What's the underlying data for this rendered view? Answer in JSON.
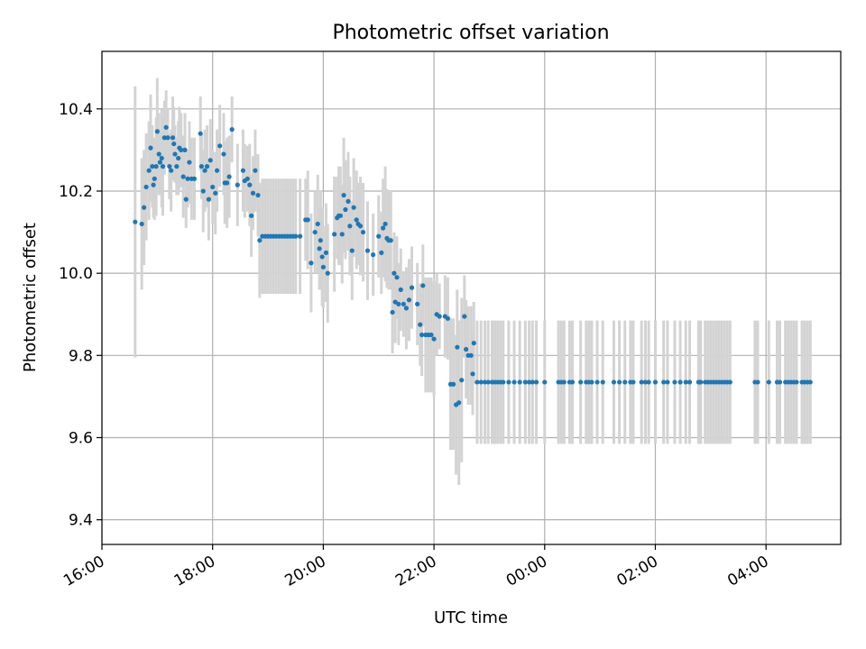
{
  "chart_data": {
    "type": "scatter",
    "title": "Photometric offset variation",
    "xlabel": "UTC time",
    "ylabel": "Photometric offset",
    "grid": true,
    "xlim": [
      16.0,
      29.35
    ],
    "ylim": [
      9.34,
      10.54
    ],
    "x_ticks": [
      {
        "value": 16,
        "label": "16:00"
      },
      {
        "value": 18,
        "label": "18:00"
      },
      {
        "value": 20,
        "label": "20:00"
      },
      {
        "value": 22,
        "label": "22:00"
      },
      {
        "value": 24,
        "label": "00:00"
      },
      {
        "value": 26,
        "label": "02:00"
      },
      {
        "value": 28,
        "label": "04:00"
      }
    ],
    "y_ticks": [
      {
        "value": 9.4,
        "label": "9.4"
      },
      {
        "value": 9.6,
        "label": "9.6"
      },
      {
        "value": 9.8,
        "label": "9.8"
      },
      {
        "value": 10.0,
        "label": "10.0"
      },
      {
        "value": 10.2,
        "label": "10.2"
      },
      {
        "value": 10.4,
        "label": "10.4"
      }
    ],
    "colors": {
      "points": "#1f77b4",
      "errorbars": "#d3d3d3"
    },
    "points": [
      [
        16.6,
        10.125,
        0.33
      ],
      [
        16.72,
        10.12,
        0.16
      ],
      [
        16.76,
        10.16,
        0.14
      ],
      [
        16.8,
        10.21,
        0.13
      ],
      [
        16.85,
        10.25,
        0.12
      ],
      [
        16.88,
        10.305,
        0.13
      ],
      [
        16.91,
        10.26,
        0.1
      ],
      [
        16.93,
        10.215,
        0.08
      ],
      [
        16.95,
        10.23,
        0.1
      ],
      [
        16.98,
        10.26,
        0.12
      ],
      [
        17.0,
        10.345,
        0.13
      ],
      [
        17.03,
        10.29,
        0.1
      ],
      [
        17.05,
        10.27,
        0.08
      ],
      [
        17.08,
        10.28,
        0.12
      ],
      [
        17.1,
        10.26,
        0.12
      ],
      [
        17.13,
        10.33,
        0.09
      ],
      [
        17.16,
        10.355,
        0.09
      ],
      [
        17.19,
        10.33,
        0.07
      ],
      [
        17.22,
        10.26,
        0.08
      ],
      [
        17.25,
        10.25,
        0.1
      ],
      [
        17.28,
        10.33,
        0.1
      ],
      [
        17.3,
        10.315,
        0.09
      ],
      [
        17.32,
        10.29,
        0.07
      ],
      [
        17.35,
        10.26,
        0.07
      ],
      [
        17.38,
        10.28,
        0.09
      ],
      [
        17.4,
        10.305,
        0.1
      ],
      [
        17.43,
        10.3,
        0.09
      ],
      [
        17.47,
        10.235,
        0.1
      ],
      [
        17.5,
        10.3,
        0.09
      ],
      [
        17.52,
        10.18,
        0.07
      ],
      [
        17.55,
        10.23,
        0.07
      ],
      [
        17.58,
        10.27,
        0.1
      ],
      [
        17.62,
        10.23,
        0.1
      ],
      [
        17.67,
        10.23,
        0.1
      ],
      [
        17.78,
        10.34,
        0.09
      ],
      [
        17.8,
        10.26,
        0.08
      ],
      [
        17.83,
        10.2,
        0.1
      ],
      [
        17.86,
        10.25,
        0.1
      ],
      [
        17.9,
        10.26,
        0.1
      ],
      [
        17.93,
        10.18,
        0.1
      ],
      [
        17.96,
        10.275,
        0.1
      ],
      [
        18.0,
        10.21,
        0.09
      ],
      [
        18.05,
        10.195,
        0.1
      ],
      [
        18.08,
        10.25,
        0.1
      ],
      [
        18.13,
        10.31,
        0.1
      ],
      [
        18.2,
        10.29,
        0.1
      ],
      [
        18.22,
        10.22,
        0.1
      ],
      [
        18.26,
        10.22,
        0.11
      ],
      [
        18.3,
        10.235,
        0.1
      ],
      [
        18.35,
        10.35,
        0.08
      ],
      [
        18.45,
        10.215,
        0.1
      ],
      [
        18.55,
        10.25,
        0.1
      ],
      [
        18.58,
        10.225,
        0.09
      ],
      [
        18.63,
        10.23,
        0.08
      ],
      [
        18.67,
        10.215,
        0.1
      ],
      [
        18.7,
        10.14,
        0.1
      ],
      [
        18.73,
        10.195,
        0.09
      ],
      [
        18.77,
        10.25,
        0.1
      ],
      [
        18.82,
        10.19,
        0.1
      ],
      [
        18.85,
        10.08,
        0.14
      ],
      [
        18.9,
        10.09,
        0.14
      ],
      [
        18.95,
        10.09,
        0.14
      ],
      [
        19.0,
        10.09,
        0.14
      ],
      [
        19.05,
        10.09,
        0.14
      ],
      [
        19.1,
        10.09,
        0.14
      ],
      [
        19.15,
        10.09,
        0.14
      ],
      [
        19.2,
        10.09,
        0.14
      ],
      [
        19.25,
        10.09,
        0.14
      ],
      [
        19.3,
        10.09,
        0.14
      ],
      [
        19.35,
        10.09,
        0.14
      ],
      [
        19.4,
        10.09,
        0.14
      ],
      [
        19.45,
        10.09,
        0.14
      ],
      [
        19.5,
        10.09,
        0.14
      ],
      [
        19.58,
        10.09,
        0.14
      ],
      [
        19.68,
        10.13,
        0.1
      ],
      [
        19.72,
        10.13,
        0.12
      ],
      [
        19.78,
        10.025,
        0.12
      ],
      [
        19.85,
        10.1,
        0.1
      ],
      [
        19.9,
        10.12,
        0.12
      ],
      [
        19.93,
        10.06,
        0.1
      ],
      [
        19.95,
        10.08,
        0.12
      ],
      [
        19.98,
        10.04,
        0.12
      ],
      [
        20.0,
        10.015,
        0.1
      ],
      [
        20.05,
        10.05,
        0.12
      ],
      [
        20.08,
        10.0,
        0.12
      ],
      [
        20.2,
        10.095,
        0.14
      ],
      [
        20.25,
        10.135,
        0.1
      ],
      [
        20.28,
        10.14,
        0.12
      ],
      [
        20.31,
        10.14,
        0.12
      ],
      [
        20.34,
        10.095,
        0.12
      ],
      [
        20.37,
        10.19,
        0.14
      ],
      [
        20.4,
        10.155,
        0.12
      ],
      [
        20.45,
        10.175,
        0.12
      ],
      [
        20.48,
        10.115,
        0.12
      ],
      [
        20.52,
        10.055,
        0.12
      ],
      [
        20.55,
        10.16,
        0.12
      ],
      [
        20.6,
        10.13,
        0.12
      ],
      [
        20.63,
        10.12,
        0.1
      ],
      [
        20.67,
        10.115,
        0.12
      ],
      [
        20.72,
        10.1,
        0.12
      ],
      [
        20.8,
        10.055,
        0.12
      ],
      [
        20.9,
        10.045,
        0.1
      ],
      [
        21.0,
        10.09,
        0.1
      ],
      [
        21.05,
        10.05,
        0.1
      ],
      [
        21.08,
        10.11,
        0.12
      ],
      [
        21.12,
        10.12,
        0.14
      ],
      [
        21.15,
        10.085,
        0.12
      ],
      [
        21.18,
        10.08,
        0.12
      ],
      [
        21.22,
        10.08,
        0.12
      ],
      [
        21.25,
        9.905,
        0.1
      ],
      [
        21.28,
        10.0,
        0.1
      ],
      [
        21.3,
        9.93,
        0.1
      ],
      [
        21.33,
        9.99,
        0.1
      ],
      [
        21.36,
        9.925,
        0.1
      ],
      [
        21.4,
        9.96,
        0.1
      ],
      [
        21.45,
        9.925,
        0.08
      ],
      [
        21.5,
        9.915,
        0.1
      ],
      [
        21.55,
        9.935,
        0.1
      ],
      [
        21.6,
        9.965,
        0.1
      ],
      [
        21.7,
        9.925,
        0.1
      ],
      [
        21.75,
        9.875,
        0.1
      ],
      [
        21.78,
        9.85,
        0.1
      ],
      [
        21.8,
        9.97,
        0.1
      ],
      [
        21.85,
        9.85,
        0.14
      ],
      [
        21.9,
        9.85,
        0.14
      ],
      [
        21.95,
        9.85,
        0.14
      ],
      [
        22.0,
        9.84,
        0.14
      ],
      [
        22.05,
        9.9,
        0.1
      ],
      [
        22.1,
        9.895,
        0.08
      ],
      [
        22.2,
        9.895,
        0.1
      ],
      [
        22.25,
        9.89,
        0.1
      ],
      [
        22.3,
        9.73,
        0.16
      ],
      [
        22.35,
        9.73,
        0.16
      ],
      [
        22.4,
        9.68,
        0.17
      ],
      [
        22.42,
        9.82,
        0.14
      ],
      [
        22.45,
        9.685,
        0.2
      ],
      [
        22.5,
        9.74,
        0.2
      ],
      [
        22.55,
        9.895,
        0.1
      ],
      [
        22.58,
        9.815,
        0.12
      ],
      [
        22.62,
        9.8,
        0.12
      ],
      [
        22.67,
        9.8,
        0.12
      ],
      [
        22.7,
        9.755,
        0.1
      ],
      [
        22.72,
        9.83,
        0.1
      ],
      [
        22.78,
        9.735,
        0.15
      ],
      [
        22.85,
        9.735,
        0.15
      ],
      [
        22.92,
        9.735,
        0.15
      ],
      [
        22.98,
        9.735,
        0.15
      ],
      [
        23.05,
        9.735,
        0.15
      ],
      [
        23.1,
        9.735,
        0.15
      ],
      [
        23.15,
        9.735,
        0.15
      ],
      [
        23.2,
        9.735,
        0.15
      ],
      [
        23.25,
        9.735,
        0.15
      ],
      [
        23.35,
        9.735,
        0.15
      ],
      [
        23.45,
        9.735,
        0.15
      ],
      [
        23.55,
        9.735,
        0.15
      ],
      [
        23.65,
        9.735,
        0.15
      ],
      [
        23.72,
        9.735,
        0.15
      ],
      [
        23.78,
        9.735,
        0.15
      ],
      [
        23.85,
        9.735,
        0.15
      ],
      [
        24.0,
        9.735,
        0.15
      ],
      [
        24.25,
        9.735,
        0.15
      ],
      [
        24.3,
        9.735,
        0.15
      ],
      [
        24.35,
        9.735,
        0.15
      ],
      [
        24.45,
        9.735,
        0.15
      ],
      [
        24.5,
        9.735,
        0.15
      ],
      [
        24.65,
        9.735,
        0.15
      ],
      [
        24.75,
        9.735,
        0.15
      ],
      [
        24.8,
        9.735,
        0.15
      ],
      [
        24.85,
        9.735,
        0.15
      ],
      [
        24.95,
        9.735,
        0.15
      ],
      [
        25.05,
        9.735,
        0.15
      ],
      [
        25.25,
        9.735,
        0.15
      ],
      [
        25.35,
        9.735,
        0.15
      ],
      [
        25.45,
        9.735,
        0.15
      ],
      [
        25.55,
        9.735,
        0.15
      ],
      [
        25.6,
        9.735,
        0.15
      ],
      [
        25.75,
        9.735,
        0.15
      ],
      [
        25.82,
        9.735,
        0.15
      ],
      [
        25.88,
        9.735,
        0.15
      ],
      [
        26.0,
        9.735,
        0.15
      ],
      [
        26.15,
        9.735,
        0.15
      ],
      [
        26.22,
        9.735,
        0.15
      ],
      [
        26.35,
        9.735,
        0.15
      ],
      [
        26.45,
        9.735,
        0.15
      ],
      [
        26.55,
        9.735,
        0.15
      ],
      [
        26.62,
        9.735,
        0.15
      ],
      [
        26.78,
        9.735,
        0.15
      ],
      [
        26.8,
        9.735,
        0.15
      ],
      [
        26.82,
        9.735,
        0.15
      ],
      [
        26.9,
        9.735,
        0.15
      ],
      [
        26.95,
        9.735,
        0.15
      ],
      [
        27.0,
        9.735,
        0.15
      ],
      [
        27.05,
        9.735,
        0.15
      ],
      [
        27.1,
        9.735,
        0.15
      ],
      [
        27.15,
        9.735,
        0.15
      ],
      [
        27.2,
        9.735,
        0.15
      ],
      [
        27.25,
        9.735,
        0.15
      ],
      [
        27.3,
        9.735,
        0.15
      ],
      [
        27.35,
        9.735,
        0.15
      ],
      [
        27.8,
        9.735,
        0.15
      ],
      [
        27.85,
        9.735,
        0.15
      ],
      [
        28.05,
        9.735,
        0.15
      ],
      [
        28.2,
        9.735,
        0.15
      ],
      [
        28.25,
        9.735,
        0.15
      ],
      [
        28.35,
        9.735,
        0.15
      ],
      [
        28.4,
        9.735,
        0.15
      ],
      [
        28.45,
        9.735,
        0.15
      ],
      [
        28.5,
        9.735,
        0.15
      ],
      [
        28.55,
        9.735,
        0.15
      ],
      [
        28.65,
        9.735,
        0.15
      ],
      [
        28.7,
        9.735,
        0.15
      ],
      [
        28.75,
        9.735,
        0.15
      ],
      [
        28.8,
        9.735,
        0.15
      ]
    ]
  }
}
